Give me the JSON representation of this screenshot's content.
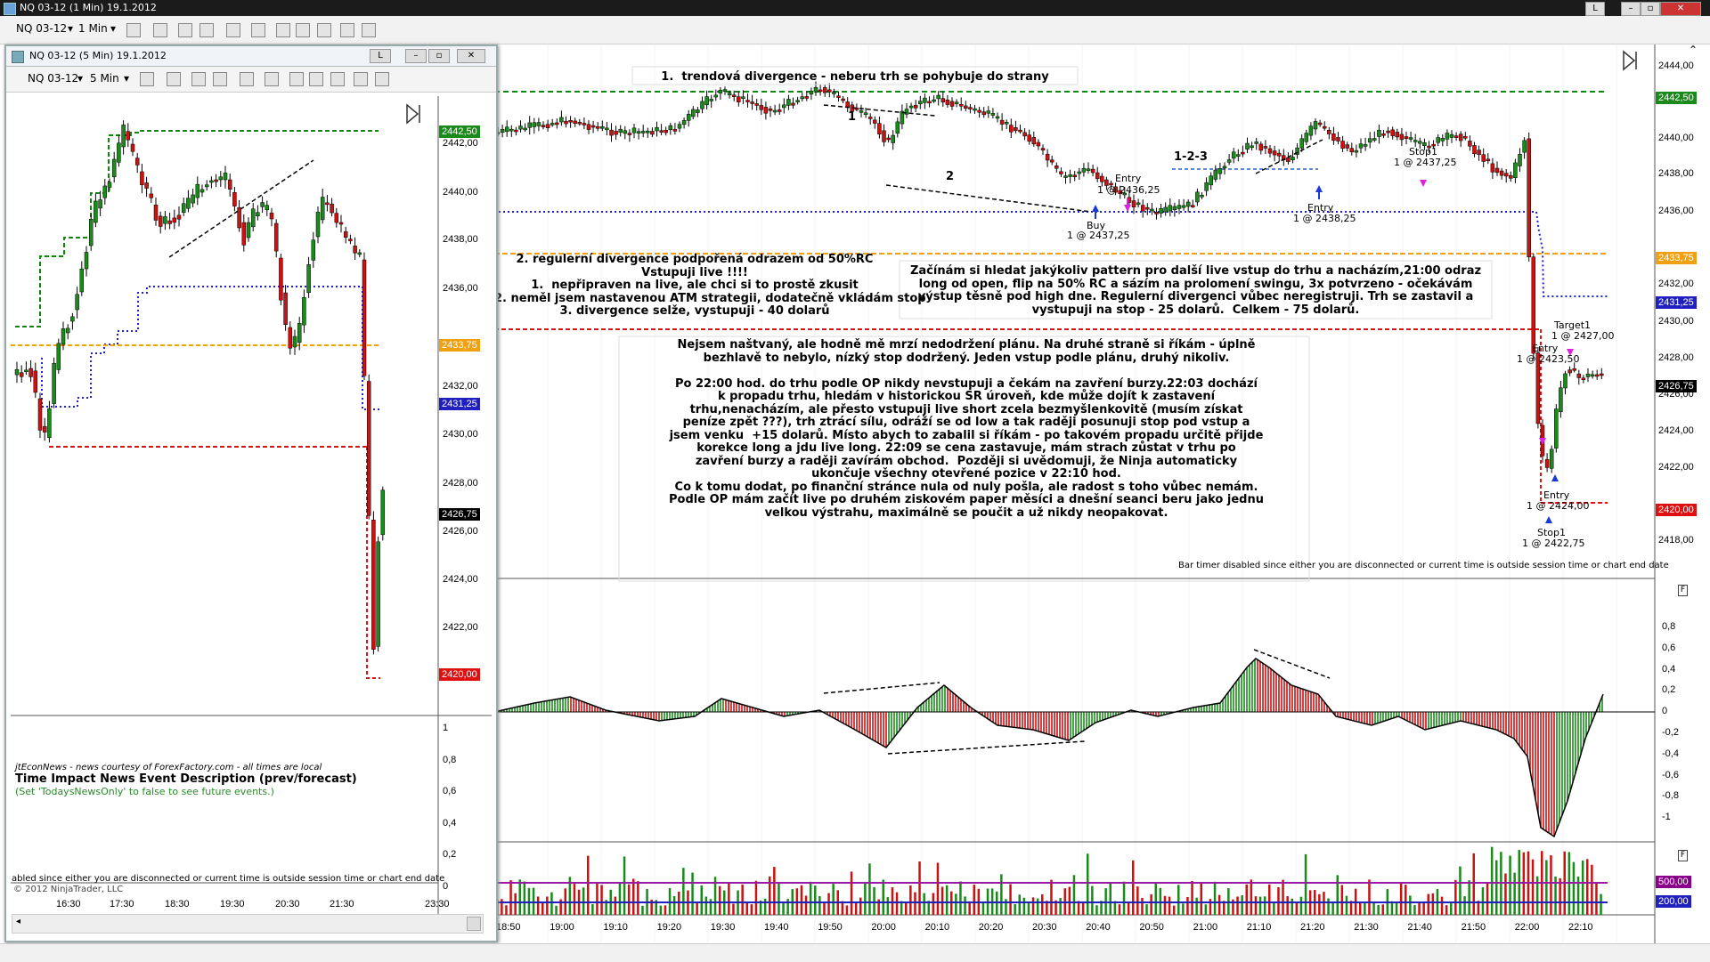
{
  "window": {
    "title": "NQ 03-12 (1 Min)  19.1.2012",
    "btn_l": "L"
  },
  "toolbar": {
    "instrument": "NQ 03-12",
    "interval": "1 Min"
  },
  "child": {
    "title": "NQ 03-12 (5 Min)  19.1.2012",
    "btn_l": "L",
    "instrument": "NQ 03-12",
    "interval": "5 Min"
  },
  "colors": {
    "up": "#1a8a1a",
    "down": "#cc1111",
    "green_line": "#0a8a0a",
    "red_line": "#e01010",
    "blue_line": "#2020d0",
    "orange_line": "#f0a010"
  },
  "main_axis": {
    "ticks": [
      "2444,00",
      "2440,00",
      "2438,00",
      "2436,00",
      "2432,00",
      "2430,00",
      "2428,00",
      "2426,00",
      "2424,00",
      "2422,00",
      "2418,00"
    ],
    "tags": [
      {
        "label": "2442,50",
        "color": "#1a8a1a"
      },
      {
        "label": "2433,75",
        "color": "#f0a010"
      },
      {
        "label": "2431,25",
        "color": "#2020c0"
      },
      {
        "label": "2426,75",
        "color": "#000000"
      },
      {
        "label": "2420,00",
        "color": "#e01010"
      }
    ]
  },
  "main_time_ticks": [
    "18:50",
    "19:00",
    "19:10",
    "19:20",
    "19:30",
    "19:40",
    "19:50",
    "20:00",
    "20:10",
    "20:20",
    "20:30",
    "20:40",
    "20:50",
    "21:00",
    "21:10",
    "21:20",
    "21:30",
    "21:40",
    "21:50",
    "22:00",
    "22:10"
  ],
  "osc_ticks": [
    "0,8",
    "0,6",
    "0,4",
    "0,2",
    "0",
    "-0,2",
    "-0,4",
    "-0,6",
    "-0,8",
    "-1"
  ],
  "vol_tags": [
    {
      "label": "500,00",
      "color": "#8a008a"
    },
    {
      "label": "200,00",
      "color": "#2020c0"
    }
  ],
  "child_axis": {
    "ticks": [
      "2442,00",
      "2440,00",
      "2438,00",
      "2436,00",
      "2432,00",
      "2430,00",
      "2428,00",
      "2426,00",
      "2424,00",
      "2422,00"
    ],
    "tags": [
      {
        "label": "2442,50",
        "color": "#1a8a1a"
      },
      {
        "label": "2433,75",
        "color": "#f0a010"
      },
      {
        "label": "2431,25",
        "color": "#2020c0"
      },
      {
        "label": "2426,75",
        "color": "#000000"
      },
      {
        "label": "2420,00",
        "color": "#e01010"
      }
    ],
    "time_ticks": [
      "16:30",
      "17:30",
      "18:30",
      "19:30",
      "20:30",
      "21:30",
      "23:30"
    ],
    "lower_ticks": [
      "1",
      "0,8",
      "0,6",
      "0,4",
      "0,2",
      "0"
    ]
  },
  "notes": {
    "n1": "1.  trendová divergence - neberu trh se pohybuje do strany",
    "n2": "2. regulerní divergence podpořená odrazem od 50%RC\nVstupuji live !!!!\n1.  nepřipraven na live, ale chci si to prostě zkusit\n2. neměl jsem nastavenou ATM strategii, dodatečně vkládám stop\n3. divergence selže, vystupuji - 40 dolarů",
    "n3": "Začínám si hledat jakýkoliv pattern pro další live vstup do trhu a nacházím,21:00 odraz\nlong od open, flip na 50% RC a sázím na prolomení swingu, 3x potvrzeno - očekávám\nvýstup těsně pod high dne. Regulerní divergenci vůbec neregistruji. Trh se zastavil a\nvystupuji na stop - 25 dolarů.  Celkem - 75 dolarů.",
    "n4": "Nejsem naštvaný, ale hodně mě mrzí nedodržení plánu. Na druhé straně si říkám - úplně\nbezhlavě to nebylo, nízký stop dodržený. Jeden vstup podle plánu, druhý nikoliv.\n\nPo 22:00 hod. do trhu podle OP nikdy nevstupuji a čekám na zavření burzy.22:03 dochází\nk propadu trhu, hledám v historickou SR úroveň, kde může dojít k zastavení\ntrhu,nenacházím, ale přesto vstupuji live short zcela bezmyšlenkovitě (musím získat\npeníze zpět ???), trh ztrácí sílu, odráží se od low a tak raději posunuji stop pod vstup a\njsem venku  +15 dolarů. Místo abych to zabalil si říkám - po takovém propadu určitě přijde\nkorekce long a jdu live long. 22:09 se cena zastavuje, mám strach zůstat v trhu po\nzavření burzy a raději zavírám obchod.  Později si uvědomuji, že Ninja automaticky\nukončuje všechny otevřené pozice v 22:10 hod.\nCo k tomu dodat, po finanční stránce nula od nuly pošla, ale radost s toho vůbec nemám.\nPodle OP mám začít live po druhém ziskovém paper měsíci a dnešní seanci beru jako jednu\nvelkou výstrahu, maximálně se poučit a už nikdy neopakovat.",
    "lbl1": "1",
    "lbl2": "2",
    "lbl123": "1-2-3",
    "entry1": "Entry",
    "entry1v": "1 @ 2436,25",
    "buy": "Buy",
    "buyv": "1 @ 2437,25",
    "entry2": "Entry",
    "entry2v": "1 @ 2438,25",
    "stop1a": "Stop1",
    "stop1av": "1 @ 2437,25",
    "target1": "Target1",
    "target1v": "1 @ 2427,00",
    "entry3": "Entry",
    "entry3v": "1 @ 2423,50",
    "entry4": "Entry",
    "entry4v": "1 @ 2424,00",
    "stop1b": "Stop1",
    "stop1bv": "1 @ 2422,75",
    "bartimer": "Bar timer disabled since either you are disconnected or current time is outside session time or chart end date",
    "bartimer_child": "abled since either you are disconnected or current time is outside session time or chart end date",
    "copyright": "© 2012 NinjaTrader, LLC"
  },
  "news": {
    "source": "jtEconNews - news courtesy of ForexFactory.com - all times are local",
    "header": "Time   Impact   News Event Description (prev/forecast)",
    "hint": "(Set 'TodaysNewsOnly' to false to see future events.)"
  }
}
